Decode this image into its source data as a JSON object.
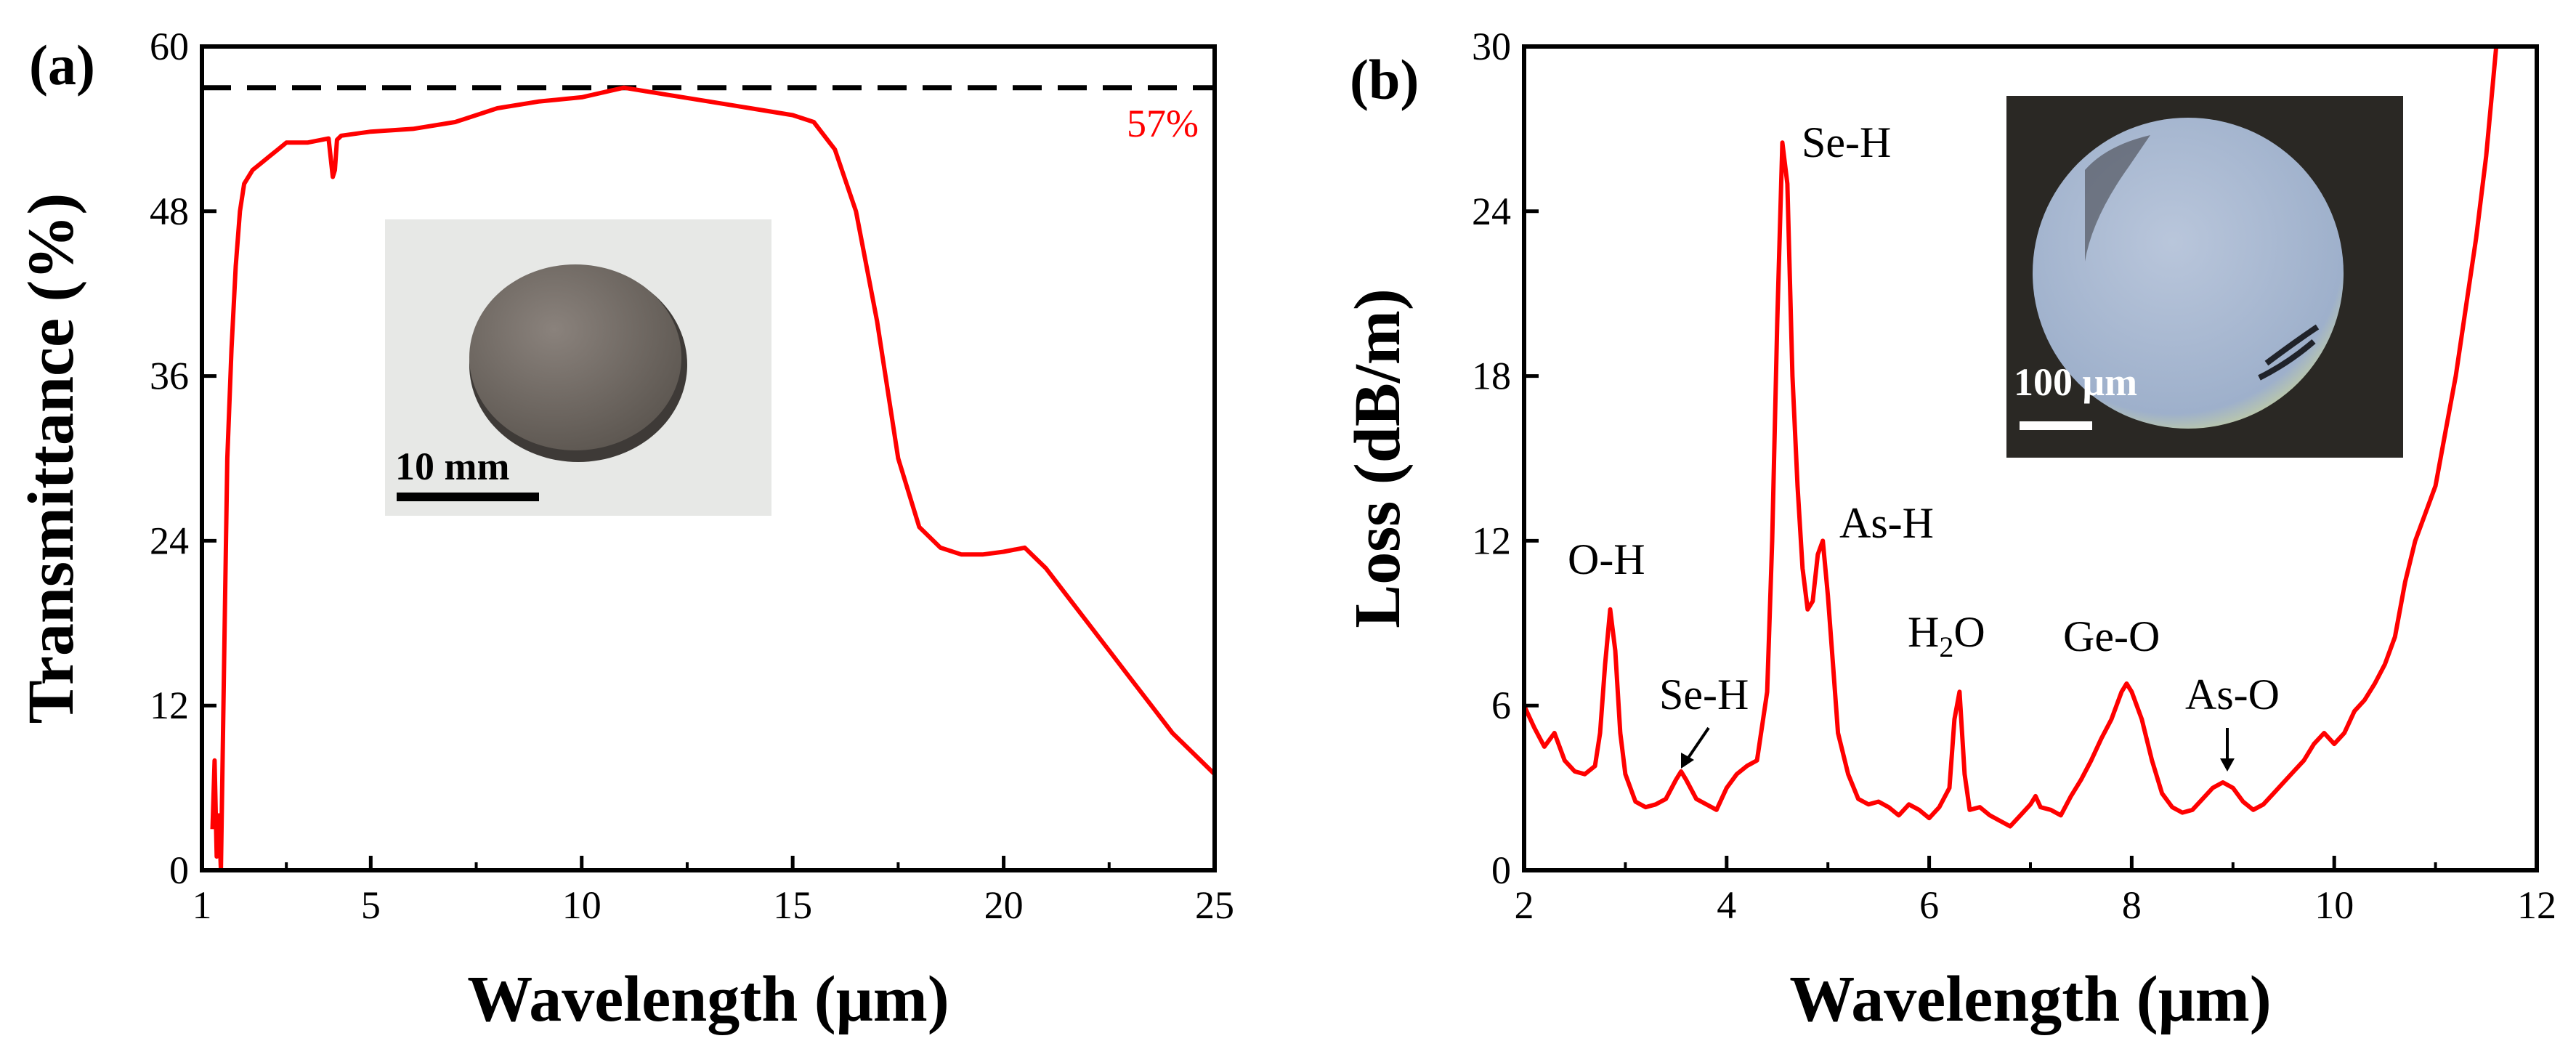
{
  "chart_data": [
    {
      "panel": "(a)",
      "type": "line",
      "title": "",
      "xlabel": "Wavelength (μm)",
      "ylabel": "Transmittance (%)",
      "xlim": [
        1,
        25
      ],
      "ylim": [
        0,
        60
      ],
      "xticks": [
        1,
        5,
        10,
        15,
        20,
        25
      ],
      "yticks": [
        0,
        12,
        24,
        36,
        48,
        60
      ],
      "x": [
        1.25,
        1.3,
        1.35,
        1.4,
        1.45,
        1.5,
        1.55,
        1.6,
        1.7,
        1.8,
        1.9,
        2.0,
        2.2,
        2.4,
        2.6,
        2.8,
        3.0,
        3.5,
        4.0,
        4.1,
        4.15,
        4.2,
        4.3,
        5.0,
        6.0,
        7.0,
        8.0,
        9.0,
        10.0,
        11.0,
        12.0,
        13.0,
        14.0,
        15.0,
        15.5,
        16.0,
        16.5,
        17.0,
        17.5,
        18.0,
        18.5,
        19.0,
        19.5,
        20.0,
        20.5,
        21.0,
        21.5,
        22.0,
        22.5,
        23.0,
        23.5,
        24.0,
        24.5,
        25.0
      ],
      "y": [
        3,
        8,
        1,
        4,
        0,
        10,
        20,
        30,
        38,
        44,
        48,
        50,
        51,
        51.5,
        52,
        52.5,
        53,
        53,
        53.3,
        50.5,
        51,
        53.2,
        53.5,
        53.8,
        54,
        54.5,
        55.5,
        56,
        56.3,
        57,
        56.5,
        56,
        55.5,
        55,
        54.5,
        52.5,
        48,
        40,
        30,
        25,
        23.5,
        23,
        23,
        23.2,
        23.5,
        22,
        20,
        18,
        16,
        14,
        12,
        10,
        8.5,
        7
      ],
      "annotations": [
        {
          "text": "57%",
          "value": 57
        }
      ],
      "reference_line": {
        "y": 57,
        "style": "dashed"
      },
      "inset": {
        "scale_label": "10 mm"
      },
      "series": [
        {
          "name": "Transmittance",
          "color": "#ff0000"
        }
      ]
    },
    {
      "panel": "(b)",
      "type": "line",
      "title": "",
      "xlabel": "Wavelength (μm)",
      "ylabel": "Loss (dB/m)",
      "xlim": [
        2,
        12
      ],
      "ylim": [
        0,
        30
      ],
      "xticks": [
        2,
        4,
        6,
        8,
        10,
        12
      ],
      "yticks": [
        0,
        6,
        12,
        18,
        24,
        30
      ],
      "x": [
        2.0,
        2.1,
        2.2,
        2.3,
        2.4,
        2.5,
        2.6,
        2.7,
        2.75,
        2.8,
        2.85,
        2.9,
        2.95,
        3.0,
        3.1,
        3.2,
        3.3,
        3.4,
        3.5,
        3.55,
        3.6,
        3.7,
        3.8,
        3.9,
        4.0,
        4.1,
        4.2,
        4.3,
        4.4,
        4.45,
        4.5,
        4.55,
        4.6,
        4.65,
        4.7,
        4.75,
        4.8,
        4.85,
        4.9,
        4.95,
        5.0,
        5.05,
        5.1,
        5.2,
        5.3,
        5.4,
        5.5,
        5.6,
        5.7,
        5.8,
        5.9,
        6.0,
        6.1,
        6.2,
        6.25,
        6.3,
        6.35,
        6.4,
        6.5,
        6.6,
        6.7,
        6.8,
        6.9,
        7.0,
        7.05,
        7.1,
        7.2,
        7.3,
        7.4,
        7.5,
        7.6,
        7.7,
        7.8,
        7.9,
        7.95,
        8.0,
        8.1,
        8.2,
        8.3,
        8.4,
        8.5,
        8.6,
        8.7,
        8.8,
        8.9,
        9.0,
        9.1,
        9.2,
        9.3,
        9.4,
        9.5,
        9.6,
        9.7,
        9.8,
        9.9,
        10.0,
        10.1,
        10.2,
        10.3,
        10.4,
        10.5,
        10.6,
        10.7,
        10.8,
        10.9,
        11.0,
        11.1,
        11.2,
        11.3,
        11.4,
        11.5,
        11.55,
        11.6
      ],
      "y": [
        6.0,
        5.2,
        4.5,
        5.0,
        4.0,
        3.6,
        3.5,
        3.8,
        5.0,
        7.5,
        9.5,
        8.0,
        5.0,
        3.5,
        2.5,
        2.3,
        2.4,
        2.6,
        3.3,
        3.6,
        3.3,
        2.6,
        2.4,
        2.2,
        3.0,
        3.5,
        3.8,
        4.0,
        6.5,
        12.0,
        20.0,
        26.5,
        25.0,
        18.0,
        14.0,
        11.0,
        9.5,
        9.8,
        11.5,
        12.0,
        10.0,
        7.5,
        5.0,
        3.5,
        2.6,
        2.4,
        2.5,
        2.3,
        2.0,
        2.4,
        2.2,
        1.9,
        2.3,
        3.0,
        5.5,
        6.5,
        3.5,
        2.2,
        2.3,
        2.0,
        1.8,
        1.6,
        2.0,
        2.4,
        2.7,
        2.3,
        2.2,
        2.0,
        2.7,
        3.3,
        4.0,
        4.8,
        5.5,
        6.5,
        6.8,
        6.5,
        5.5,
        4.0,
        2.8,
        2.3,
        2.1,
        2.2,
        2.6,
        3.0,
        3.2,
        3.0,
        2.5,
        2.2,
        2.4,
        2.8,
        3.2,
        3.6,
        4.0,
        4.6,
        5.0,
        4.6,
        5.0,
        5.8,
        6.2,
        6.8,
        7.5,
        8.5,
        10.5,
        12.0,
        13.0,
        14.0,
        16.0,
        18.0,
        20.5,
        23.0,
        26.0,
        28.0,
        30.0
      ],
      "annotations": [
        {
          "text": "Se-H",
          "at_x": 4.6,
          "at_y": 26.5
        },
        {
          "text": "O-H",
          "at_x": 2.85,
          "at_y": 9.5
        },
        {
          "text": "Se-H",
          "at_x": 3.55,
          "at_y": 3.6,
          "arrow": true
        },
        {
          "text": "As-H",
          "at_x": 4.95,
          "at_y": 12.0
        },
        {
          "text": "H2O",
          "at_x": 6.3,
          "at_y": 6.5
        },
        {
          "text": "Ge-O",
          "at_x": 7.95,
          "at_y": 6.8
        },
        {
          "text": "As-O",
          "at_x": 8.95,
          "at_y": 3.2,
          "arrow": true
        }
      ],
      "inset": {
        "scale_label": "100 μm"
      },
      "series": [
        {
          "name": "Loss",
          "color": "#ff0000"
        }
      ]
    }
  ]
}
